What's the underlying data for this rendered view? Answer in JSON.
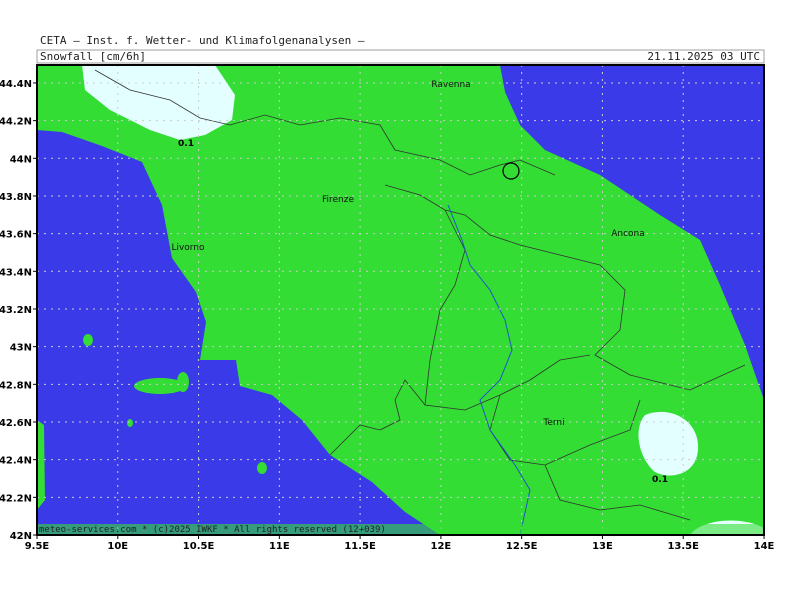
{
  "header": {
    "title": "CETA — Inst. f. Wetter- und Klimafolgenanalysen —",
    "product": "Snowfall [cm/6h]",
    "valid": "21.11.2025 03 UTC"
  },
  "map": {
    "lon_ticks": [
      "9.5E",
      "10E",
      "10.5E",
      "11E",
      "11.5E",
      "12E",
      "12.5E",
      "13E",
      "13.5E",
      "14E"
    ],
    "lat_ticks": [
      "42N",
      "42.2N",
      "42.4N",
      "42.6N",
      "42.8N",
      "43N",
      "43.2N",
      "43.4N",
      "43.6N",
      "43.8N",
      "44N",
      "44.2N",
      "44.4N"
    ],
    "cities": [
      "Ravenna",
      "Firenze",
      "Livorno",
      "Ancona",
      "Terni"
    ],
    "contour_labels": [
      "0.1",
      "0.1"
    ]
  },
  "footer": "meteo-services.com * (c)2025 IWKF * All rights reserved (12+039)"
}
